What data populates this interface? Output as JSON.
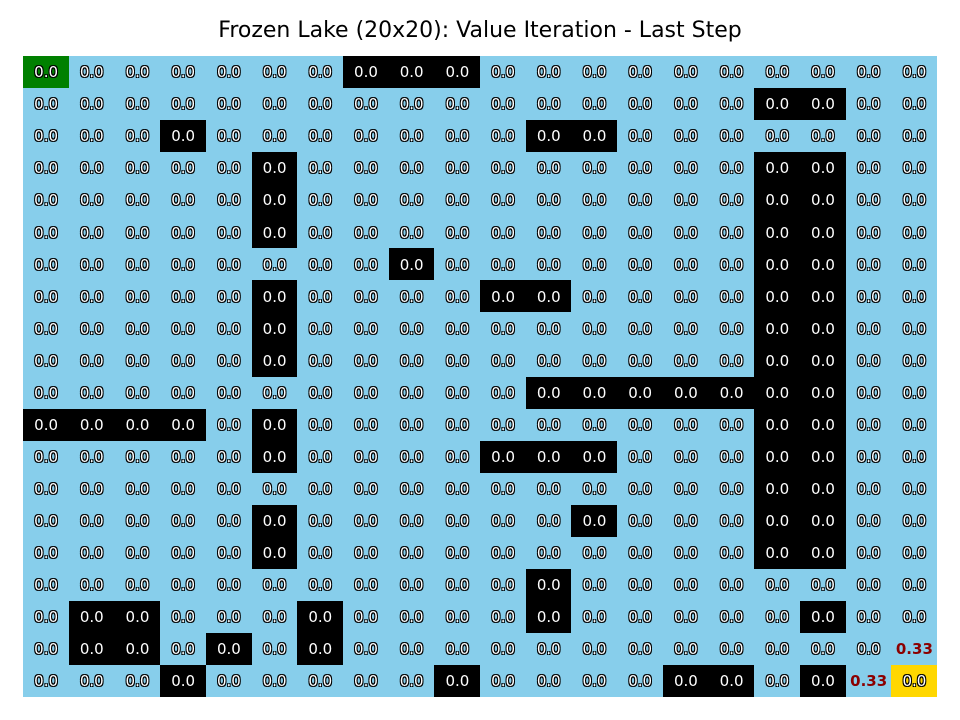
{
  "title": "Frozen Lake (20x20): Value Iteration - Last Step",
  "colors": {
    "frozen": "#87ceeb",
    "hole": "#000000",
    "start": "#008000",
    "goal": "#ffd700",
    "high_value_text": "#8b0000"
  },
  "grid": {
    "rows": 20,
    "cols": 20,
    "map": [
      "SFFFFFFHHHFFFFFFFFFF",
      "FFFFFFFFFFFFFFFFHHFF",
      "FFFHFFFFFFFHHFFFFFFF",
      "FFFFFHFFFFFFFFFFHHFF",
      "FFFFFHFFFFFFFFFFHHFF",
      "FFFFFHFFFFFFFFFFHHFF",
      "FFFFFFFFHFFFFFFFHHFF",
      "FFFFFHFFFFHHFFFFHHFF",
      "FFFFFHFFFFFFFFFFHHFF",
      "FFFFFHFFFFFFFFFFHHFF",
      "FFFFFFFFFFFHHHHHHHFF",
      "HHHHFHFFFFFFFFFFHHFF",
      "FFFFFHFFFFHHHFFFHHFF",
      "FFFFFFFFFFFFFFFFHHFF",
      "FFFFFHFFFFFFHFFFHHFF",
      "FFFFFHFFFFFFFFFFHHFF",
      "FFFFFFFFFFFHFFFFFFFF",
      "FHHFFFHFFFFHFFFFFHFF",
      "FHHFHFHFFFFFFFFFFFFF",
      "FFFHFFFFFHFFFFHHFHFG"
    ],
    "values": [
      [
        "0.0",
        "0.0",
        "0.0",
        "0.0",
        "0.0",
        "0.0",
        "0.0",
        "0.0",
        "0.0",
        "0.0",
        "0.0",
        "0.0",
        "0.0",
        "0.0",
        "0.0",
        "0.0",
        "0.0",
        "0.0",
        "0.0",
        "0.0"
      ],
      [
        "0.0",
        "0.0",
        "0.0",
        "0.0",
        "0.0",
        "0.0",
        "0.0",
        "0.0",
        "0.0",
        "0.0",
        "0.0",
        "0.0",
        "0.0",
        "0.0",
        "0.0",
        "0.0",
        "0.0",
        "0.0",
        "0.0",
        "0.0"
      ],
      [
        "0.0",
        "0.0",
        "0.0",
        "0.0",
        "0.0",
        "0.0",
        "0.0",
        "0.0",
        "0.0",
        "0.0",
        "0.0",
        "0.0",
        "0.0",
        "0.0",
        "0.0",
        "0.0",
        "0.0",
        "0.0",
        "0.0",
        "0.0"
      ],
      [
        "0.0",
        "0.0",
        "0.0",
        "0.0",
        "0.0",
        "0.0",
        "0.0",
        "0.0",
        "0.0",
        "0.0",
        "0.0",
        "0.0",
        "0.0",
        "0.0",
        "0.0",
        "0.0",
        "0.0",
        "0.0",
        "0.0",
        "0.0"
      ],
      [
        "0.0",
        "0.0",
        "0.0",
        "0.0",
        "0.0",
        "0.0",
        "0.0",
        "0.0",
        "0.0",
        "0.0",
        "0.0",
        "0.0",
        "0.0",
        "0.0",
        "0.0",
        "0.0",
        "0.0",
        "0.0",
        "0.0",
        "0.0"
      ],
      [
        "0.0",
        "0.0",
        "0.0",
        "0.0",
        "0.0",
        "0.0",
        "0.0",
        "0.0",
        "0.0",
        "0.0",
        "0.0",
        "0.0",
        "0.0",
        "0.0",
        "0.0",
        "0.0",
        "0.0",
        "0.0",
        "0.0",
        "0.0"
      ],
      [
        "0.0",
        "0.0",
        "0.0",
        "0.0",
        "0.0",
        "0.0",
        "0.0",
        "0.0",
        "0.0",
        "0.0",
        "0.0",
        "0.0",
        "0.0",
        "0.0",
        "0.0",
        "0.0",
        "0.0",
        "0.0",
        "0.0",
        "0.0"
      ],
      [
        "0.0",
        "0.0",
        "0.0",
        "0.0",
        "0.0",
        "0.0",
        "0.0",
        "0.0",
        "0.0",
        "0.0",
        "0.0",
        "0.0",
        "0.0",
        "0.0",
        "0.0",
        "0.0",
        "0.0",
        "0.0",
        "0.0",
        "0.0"
      ],
      [
        "0.0",
        "0.0",
        "0.0",
        "0.0",
        "0.0",
        "0.0",
        "0.0",
        "0.0",
        "0.0",
        "0.0",
        "0.0",
        "0.0",
        "0.0",
        "0.0",
        "0.0",
        "0.0",
        "0.0",
        "0.0",
        "0.0",
        "0.0"
      ],
      [
        "0.0",
        "0.0",
        "0.0",
        "0.0",
        "0.0",
        "0.0",
        "0.0",
        "0.0",
        "0.0",
        "0.0",
        "0.0",
        "0.0",
        "0.0",
        "0.0",
        "0.0",
        "0.0",
        "0.0",
        "0.0",
        "0.0",
        "0.0"
      ],
      [
        "0.0",
        "0.0",
        "0.0",
        "0.0",
        "0.0",
        "0.0",
        "0.0",
        "0.0",
        "0.0",
        "0.0",
        "0.0",
        "0.0",
        "0.0",
        "0.0",
        "0.0",
        "0.0",
        "0.0",
        "0.0",
        "0.0",
        "0.0"
      ],
      [
        "0.0",
        "0.0",
        "0.0",
        "0.0",
        "0.0",
        "0.0",
        "0.0",
        "0.0",
        "0.0",
        "0.0",
        "0.0",
        "0.0",
        "0.0",
        "0.0",
        "0.0",
        "0.0",
        "0.0",
        "0.0",
        "0.0",
        "0.0"
      ],
      [
        "0.0",
        "0.0",
        "0.0",
        "0.0",
        "0.0",
        "0.0",
        "0.0",
        "0.0",
        "0.0",
        "0.0",
        "0.0",
        "0.0",
        "0.0",
        "0.0",
        "0.0",
        "0.0",
        "0.0",
        "0.0",
        "0.0",
        "0.0"
      ],
      [
        "0.0",
        "0.0",
        "0.0",
        "0.0",
        "0.0",
        "0.0",
        "0.0",
        "0.0",
        "0.0",
        "0.0",
        "0.0",
        "0.0",
        "0.0",
        "0.0",
        "0.0",
        "0.0",
        "0.0",
        "0.0",
        "0.0",
        "0.0"
      ],
      [
        "0.0",
        "0.0",
        "0.0",
        "0.0",
        "0.0",
        "0.0",
        "0.0",
        "0.0",
        "0.0",
        "0.0",
        "0.0",
        "0.0",
        "0.0",
        "0.0",
        "0.0",
        "0.0",
        "0.0",
        "0.0",
        "0.0",
        "0.0"
      ],
      [
        "0.0",
        "0.0",
        "0.0",
        "0.0",
        "0.0",
        "0.0",
        "0.0",
        "0.0",
        "0.0",
        "0.0",
        "0.0",
        "0.0",
        "0.0",
        "0.0",
        "0.0",
        "0.0",
        "0.0",
        "0.0",
        "0.0",
        "0.0"
      ],
      [
        "0.0",
        "0.0",
        "0.0",
        "0.0",
        "0.0",
        "0.0",
        "0.0",
        "0.0",
        "0.0",
        "0.0",
        "0.0",
        "0.0",
        "0.0",
        "0.0",
        "0.0",
        "0.0",
        "0.0",
        "0.0",
        "0.0",
        "0.0"
      ],
      [
        "0.0",
        "0.0",
        "0.0",
        "0.0",
        "0.0",
        "0.0",
        "0.0",
        "0.0",
        "0.0",
        "0.0",
        "0.0",
        "0.0",
        "0.0",
        "0.0",
        "0.0",
        "0.0",
        "0.0",
        "0.0",
        "0.0",
        "0.0"
      ],
      [
        "0.0",
        "0.0",
        "0.0",
        "0.0",
        "0.0",
        "0.0",
        "0.0",
        "0.0",
        "0.0",
        "0.0",
        "0.0",
        "0.0",
        "0.0",
        "0.0",
        "0.0",
        "0.0",
        "0.0",
        "0.0",
        "0.0",
        "0.33"
      ],
      [
        "0.0",
        "0.0",
        "0.0",
        "0.0",
        "0.0",
        "0.0",
        "0.0",
        "0.0",
        "0.0",
        "0.0",
        "0.0",
        "0.0",
        "0.0",
        "0.0",
        "0.0",
        "0.0",
        "0.0",
        "0.0",
        "0.33",
        "0.0"
      ]
    ]
  }
}
